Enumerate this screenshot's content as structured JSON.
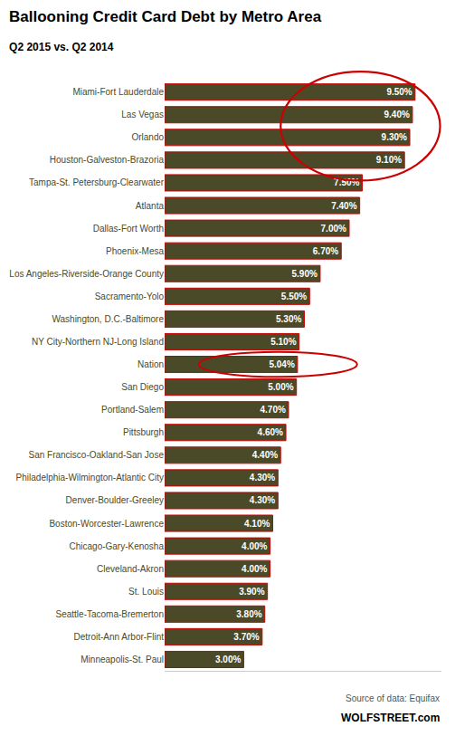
{
  "chart_data": {
    "type": "bar",
    "orientation": "horizontal",
    "title": "Ballooning Credit Card Debt by Metro Area",
    "subtitle": "Q2 2015 vs. Q2 2014",
    "annotations": [
      "Source of data: Equifax",
      "WOLFSTREET.com"
    ],
    "categories": [
      "Miami-Fort Lauderdale",
      "Las Vegas",
      "Orlando",
      "Houston-Galveston-Brazoria",
      "Tampa-St. Petersburg-Clearwater",
      "Atlanta",
      "Dallas-Fort Worth",
      "Phoenix-Mesa",
      "Los Angeles-Riverside-Orange County",
      "Sacramento-Yolo",
      "Washington, D.C.-Baltimore",
      "NY City-Northern NJ-Long Island",
      "Nation",
      "San Diego",
      "Portland-Salem",
      "Pittsburgh",
      "San Francisco-Oakland-San Jose",
      "Philadelphia-Wilmington-Atlantic City",
      "Denver-Boulder-Greeley",
      "Boston-Worcester-Lawrence",
      "Chicago-Gary-Kenosha",
      "Cleveland-Akron",
      "St. Louis",
      "Seattle-Tacoma-Bremerton",
      "Detroit-Ann Arbor-Flint",
      "Minneapolis-St. Paul"
    ],
    "values": [
      9.5,
      9.4,
      9.3,
      9.1,
      7.5,
      7.4,
      7.0,
      6.7,
      5.9,
      5.5,
      5.3,
      5.1,
      5.04,
      5.0,
      4.7,
      4.6,
      4.4,
      4.3,
      4.3,
      4.1,
      4.0,
      4.0,
      3.9,
      3.8,
      3.7,
      3.0
    ],
    "value_labels": [
      "9.50%",
      "9.40%",
      "9.30%",
      "9.10%",
      "7.50%",
      "7.40%",
      "7.00%",
      "6.70%",
      "5.90%",
      "5.50%",
      "5.30%",
      "5.10%",
      "5.04%",
      "5.00%",
      "4.70%",
      "4.60%",
      "4.40%",
      "4.30%",
      "4.30%",
      "4.10%",
      "4.00%",
      "4.00%",
      "3.90%",
      "3.80%",
      "3.70%",
      "3.00%"
    ],
    "data_labels": true,
    "color": "#4a4a28",
    "xlim": [
      0,
      10.5
    ],
    "grid": false,
    "tick_labels": "y"
  }
}
